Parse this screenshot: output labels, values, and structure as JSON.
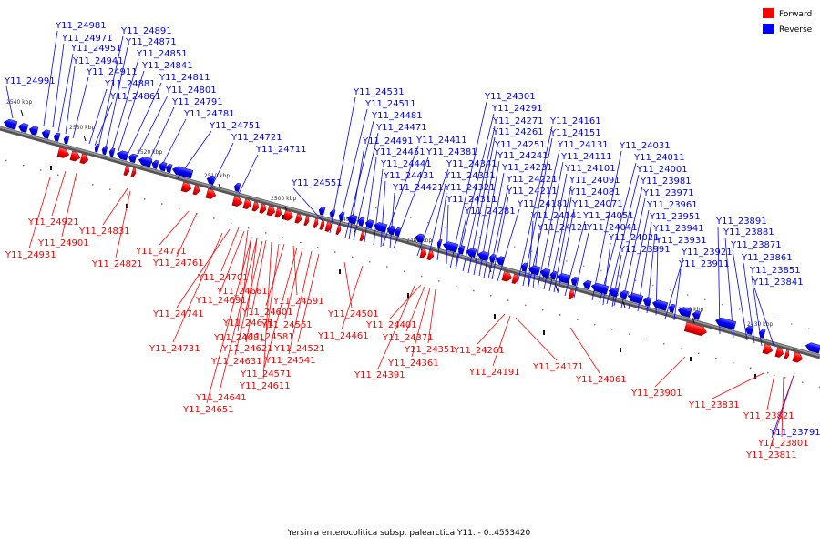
{
  "legend": {
    "forward": {
      "label": "Forward",
      "color": "#ff0000"
    },
    "reverse": {
      "label": "Reverse",
      "color": "#0000ff"
    }
  },
  "caption": "Yersinia enterocolitica subsp. palearctica Y11. - 0..4553420",
  "ticks": [
    "2540 kbp",
    "2530 kbp",
    "2520 kbp",
    "2510 kbp",
    "2500 kbp",
    "2490 kbp",
    "2480 kbp",
    "2470 kbp",
    "2460 kbp",
    "2450 kbp",
    "2440 kbp",
    "2430 kbp"
  ],
  "reverse_labels": [
    "Y11_24991",
    "Y11_24981",
    "Y11_24971",
    "Y11_24951",
    "Y11_24941",
    "Y11_24911",
    "Y11_24891",
    "Y11_24871",
    "Y11_24851",
    "Y11_24841",
    "Y11_24811",
    "Y11_24801",
    "Y11_24881",
    "Y11_24861",
    "Y11_24791",
    "Y11_24781",
    "Y11_24751",
    "Y11_24721",
    "Y11_24711",
    "Y11_24551",
    "Y11_24531",
    "Y11_24511",
    "Y11_24481",
    "Y11_24471",
    "Y11_24491",
    "Y11_24411",
    "Y11_24451",
    "Y11_24381",
    "Y11_24441",
    "Y11_24341",
    "Y11_24431",
    "Y11_24331",
    "Y11_24421",
    "Y11_24321",
    "Y11_24311",
    "Y11_24281",
    "Y11_24301",
    "Y11_24291",
    "Y11_24271",
    "Y11_24261",
    "Y11_24251",
    "Y11_24241",
    "Y11_24231",
    "Y11_24221",
    "Y11_24211",
    "Y11_24181",
    "Y11_24161",
    "Y11_24151",
    "Y11_24131",
    "Y11_24111",
    "Y11_24101",
    "Y11_24091",
    "Y11_24081",
    "Y11_24071",
    "Y11_24141",
    "Y11_24121",
    "Y11_24051",
    "Y11_24041",
    "Y11_24031",
    "Y11_24011",
    "Y11_24001",
    "Y11_23981",
    "Y11_23971",
    "Y11_23961",
    "Y11_23951",
    "Y11_23941",
    "Y11_23931",
    "Y11_24021",
    "Y11_23991",
    "Y11_23921",
    "Y11_23911",
    "Y11_23891",
    "Y11_23881",
    "Y11_23871",
    "Y11_23861",
    "Y11_23851",
    "Y11_23841",
    "Y11_23791"
  ],
  "forward_labels": [
    "Y11_24921",
    "Y11_24901",
    "Y11_24931",
    "Y11_24831",
    "Y11_24821",
    "Y11_24771",
    "Y11_24761",
    "Y11_24701",
    "Y11_24661",
    "Y11_24741",
    "Y11_24691",
    "Y11_24731",
    "Y11_24671",
    "Y11_24681",
    "Y11_24621",
    "Y11_24631",
    "Y11_24611",
    "Y11_24641",
    "Y11_24651",
    "Y11_24591",
    "Y11_24601",
    "Y11_24561",
    "Y11_24581",
    "Y11_24521",
    "Y11_24541",
    "Y11_24571",
    "Y11_24501",
    "Y11_24461",
    "Y11_24401",
    "Y11_24371",
    "Y11_24361",
    "Y11_24351",
    "Y11_24391",
    "Y11_24201",
    "Y11_24191",
    "Y11_24171",
    "Y11_24061",
    "Y11_23901",
    "Y11_23831",
    "Y11_23821",
    "Y11_23801",
    "Y11_23811"
  ]
}
